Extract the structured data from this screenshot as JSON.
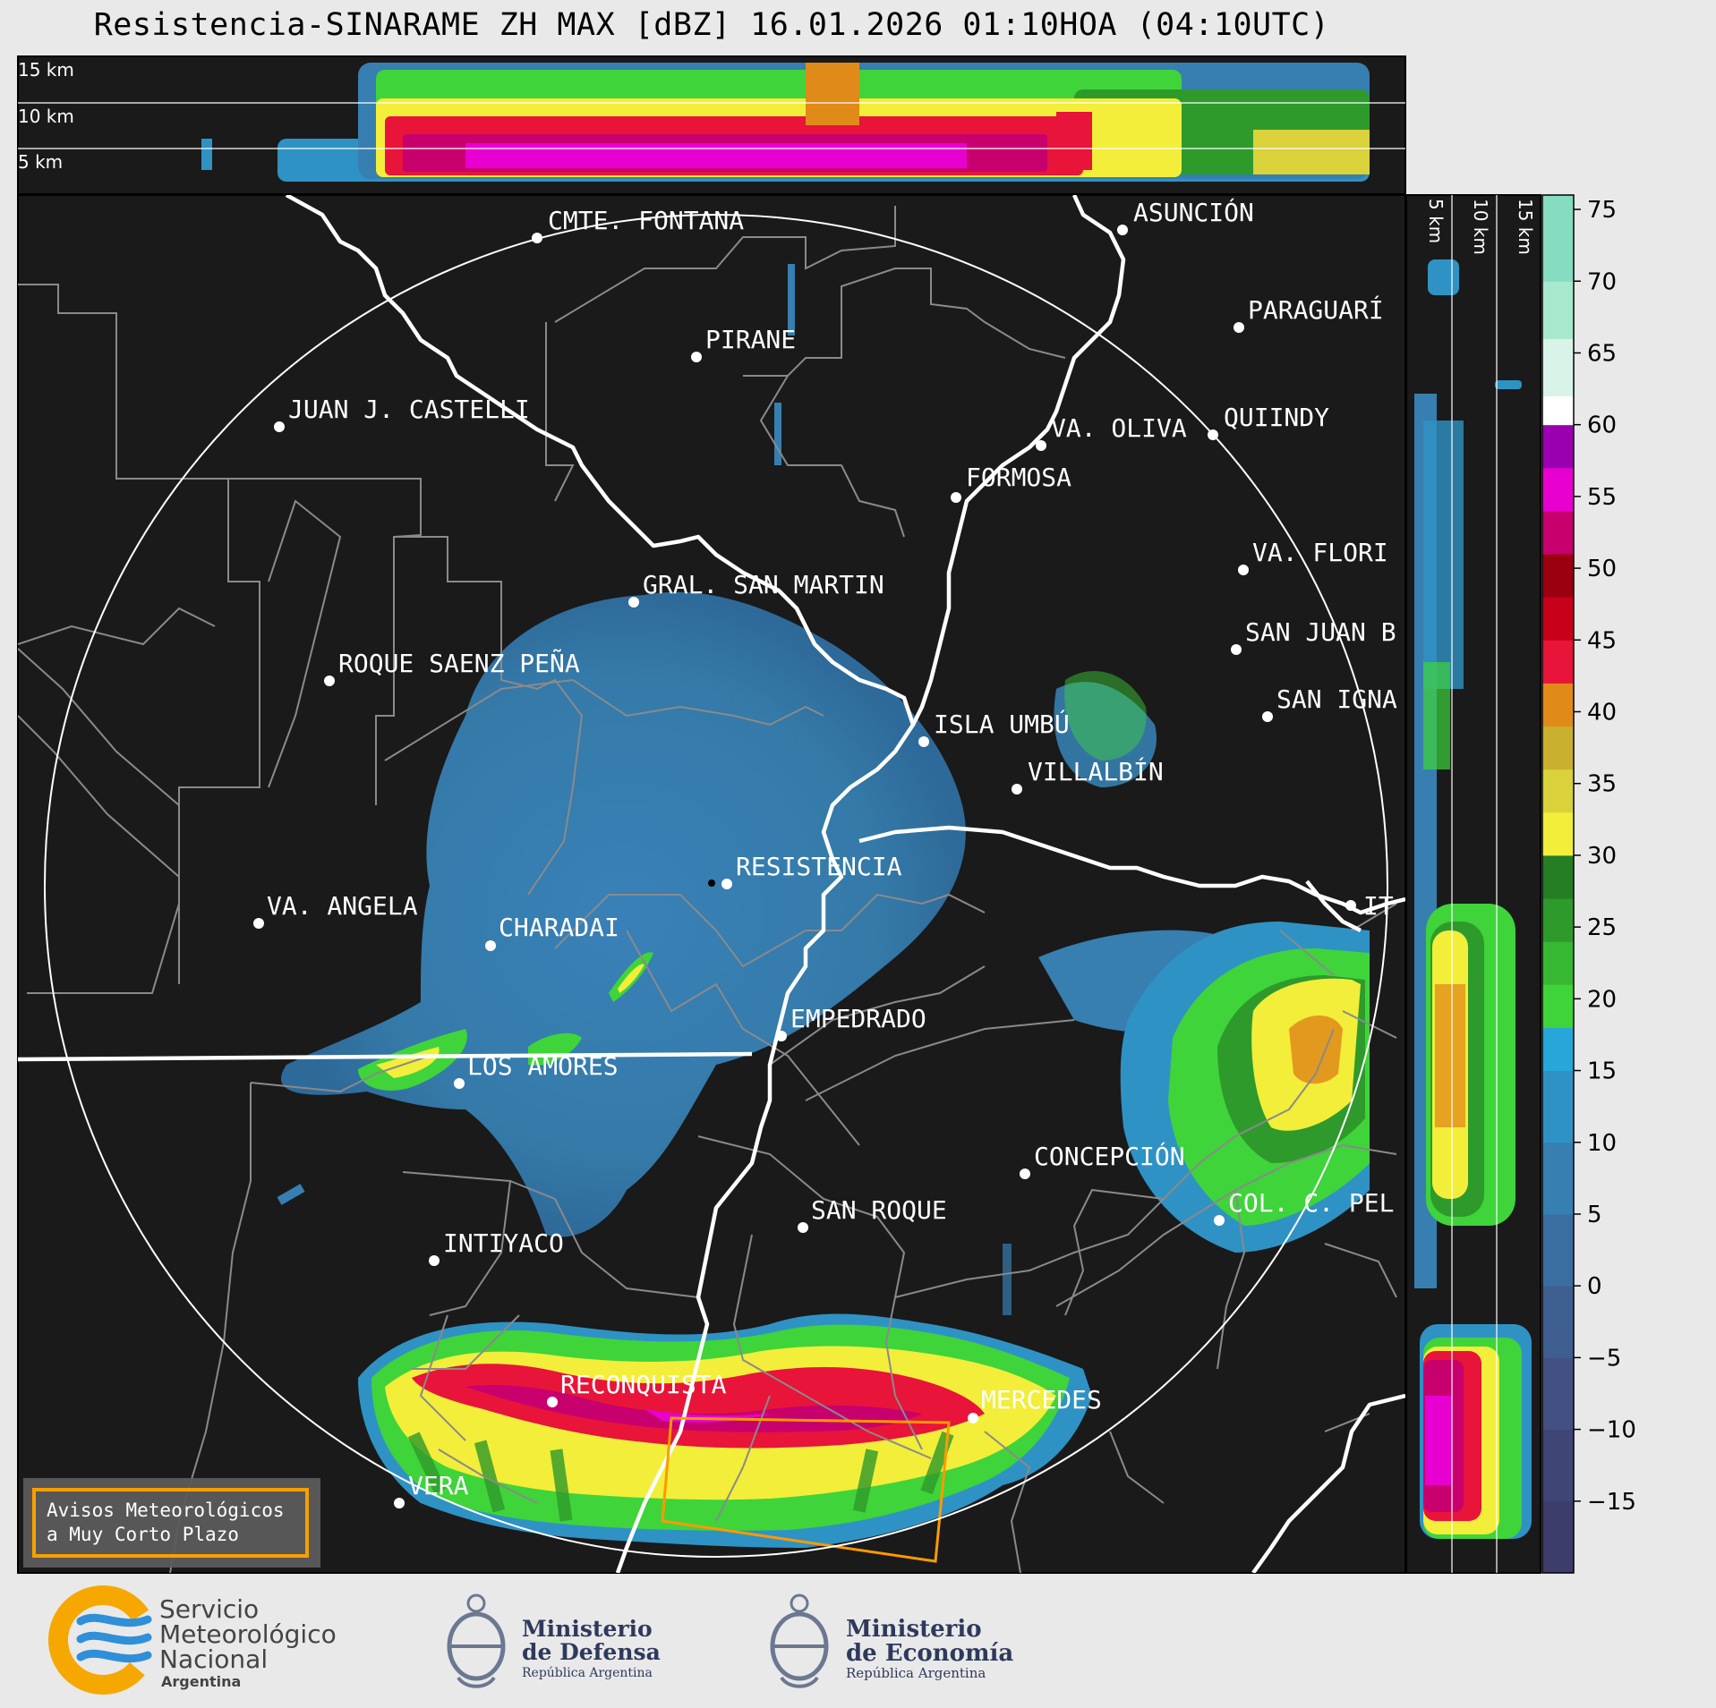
{
  "title": "Resistencia-SINARAME ZH MAX [dBZ] 16.01.2026 01:10HOA (04:10UTC)",
  "top_panel_height_labels": [
    "15 km",
    "10 km",
    "5 km"
  ],
  "side_panel_height_labels": [
    "5 km",
    "10 km",
    "15 km"
  ],
  "colorbar": {
    "ticks": [
      "75",
      "70",
      "65",
      "60",
      "55",
      "50",
      "45",
      "40",
      "35",
      "30",
      "25",
      "20",
      "15",
      "10",
      "5",
      "0",
      "−5",
      "−10",
      "−15"
    ],
    "tick_values": [
      75,
      70,
      65,
      60,
      55,
      50,
      45,
      40,
      35,
      30,
      25,
      20,
      15,
      10,
      5,
      0,
      -5,
      -10,
      -15
    ],
    "min": -20,
    "max": 76,
    "bands": [
      {
        "from": -20,
        "to": -15,
        "color": "#3c3d6a"
      },
      {
        "from": -15,
        "to": -10,
        "color": "#3f4676"
      },
      {
        "from": -10,
        "to": -5,
        "color": "#425181"
      },
      {
        "from": -5,
        "to": 0,
        "color": "#3f5e90"
      },
      {
        "from": 0,
        "to": 5,
        "color": "#3b6ea0"
      },
      {
        "from": 5,
        "to": 10,
        "color": "#367fb0"
      },
      {
        "from": 10,
        "to": 15,
        "color": "#2f92c4"
      },
      {
        "from": 15,
        "to": 18,
        "color": "#27a6d9"
      },
      {
        "from": 18,
        "to": 21,
        "color": "#3fd43a"
      },
      {
        "from": 21,
        "to": 24,
        "color": "#36b832"
      },
      {
        "from": 24,
        "to": 27,
        "color": "#2e9a2b"
      },
      {
        "from": 27,
        "to": 30,
        "color": "#257d24"
      },
      {
        "from": 30,
        "to": 33,
        "color": "#f2ee3a"
      },
      {
        "from": 33,
        "to": 36,
        "color": "#d9d23a"
      },
      {
        "from": 36,
        "to": 39,
        "color": "#c9b02e"
      },
      {
        "from": 39,
        "to": 42,
        "color": "#e08a1a"
      },
      {
        "from": 42,
        "to": 45,
        "color": "#e8143a"
      },
      {
        "from": 45,
        "to": 48,
        "color": "#c8001a"
      },
      {
        "from": 48,
        "to": 51,
        "color": "#9a0010"
      },
      {
        "from": 51,
        "to": 54,
        "color": "#c8006e"
      },
      {
        "from": 54,
        "to": 57,
        "color": "#e800d0"
      },
      {
        "from": 57,
        "to": 60,
        "color": "#9b00b0"
      },
      {
        "from": 60,
        "to": 62,
        "color": "#ffffff"
      },
      {
        "from": 62,
        "to": 66,
        "color": "#d8f4e8"
      },
      {
        "from": 66,
        "to": 70,
        "color": "#a8e8cc"
      },
      {
        "from": 70,
        "to": 76,
        "color": "#86dcc0"
      }
    ]
  },
  "cities": [
    {
      "name": "CMTE. FONTANA"
    },
    {
      "name": "ASUNCIÓN"
    },
    {
      "name": "PARAGUARÍ"
    },
    {
      "name": "PIRANE"
    },
    {
      "name": "JUAN J. CASTELLI"
    },
    {
      "name": "VA. OLIVA"
    },
    {
      "name": "QUIINDY"
    },
    {
      "name": "FORMOSA"
    },
    {
      "name": "VA. FLORI"
    },
    {
      "name": "GRAL. SAN MARTIN"
    },
    {
      "name": "SAN JUAN B"
    },
    {
      "name": "ROQUE SAENZ PEÑA"
    },
    {
      "name": "SAN IGNA"
    },
    {
      "name": "ISLA UMBÚ"
    },
    {
      "name": "VILLALBÍN"
    },
    {
      "name": "RESISTENCIA"
    },
    {
      "name": "VA. ANGELA"
    },
    {
      "name": "CHARADAI"
    },
    {
      "name": "IT"
    },
    {
      "name": "EMPEDRADO"
    },
    {
      "name": "LOS AMORES"
    },
    {
      "name": "CONCEPCIÓN"
    },
    {
      "name": "SAN ROQUE"
    },
    {
      "name": "COL. C. PEL"
    },
    {
      "name": "INTIYACO"
    },
    {
      "name": "RECONQUISTA"
    },
    {
      "name": "MERCEDES"
    },
    {
      "name": "VERA"
    }
  ],
  "warning_box": {
    "line1": "Avisos Meteorológicos",
    "line2": "a Muy Corto Plazo"
  },
  "footer": {
    "smn": {
      "line1": "Servicio",
      "line2": "Meteorológico",
      "line3": "Nacional",
      "line4": "Argentina"
    },
    "defensa": {
      "line1": "Ministerio",
      "line2": "de Defensa",
      "line3": "República Argentina"
    },
    "economia": {
      "line1": "Ministerio",
      "line2": "de Economía",
      "line3": "República Argentina"
    }
  },
  "colors": {
    "map_background": "#1a1a1a",
    "range_ring": "#ffffff",
    "borders": "#8a8a8a",
    "rivers": "#ffffff",
    "warning_polygon": "#ff9a00",
    "smn_orange": "#f6a800",
    "smn_blue": "#2f8fd8",
    "ministry_navy": "#2e3a5c"
  }
}
